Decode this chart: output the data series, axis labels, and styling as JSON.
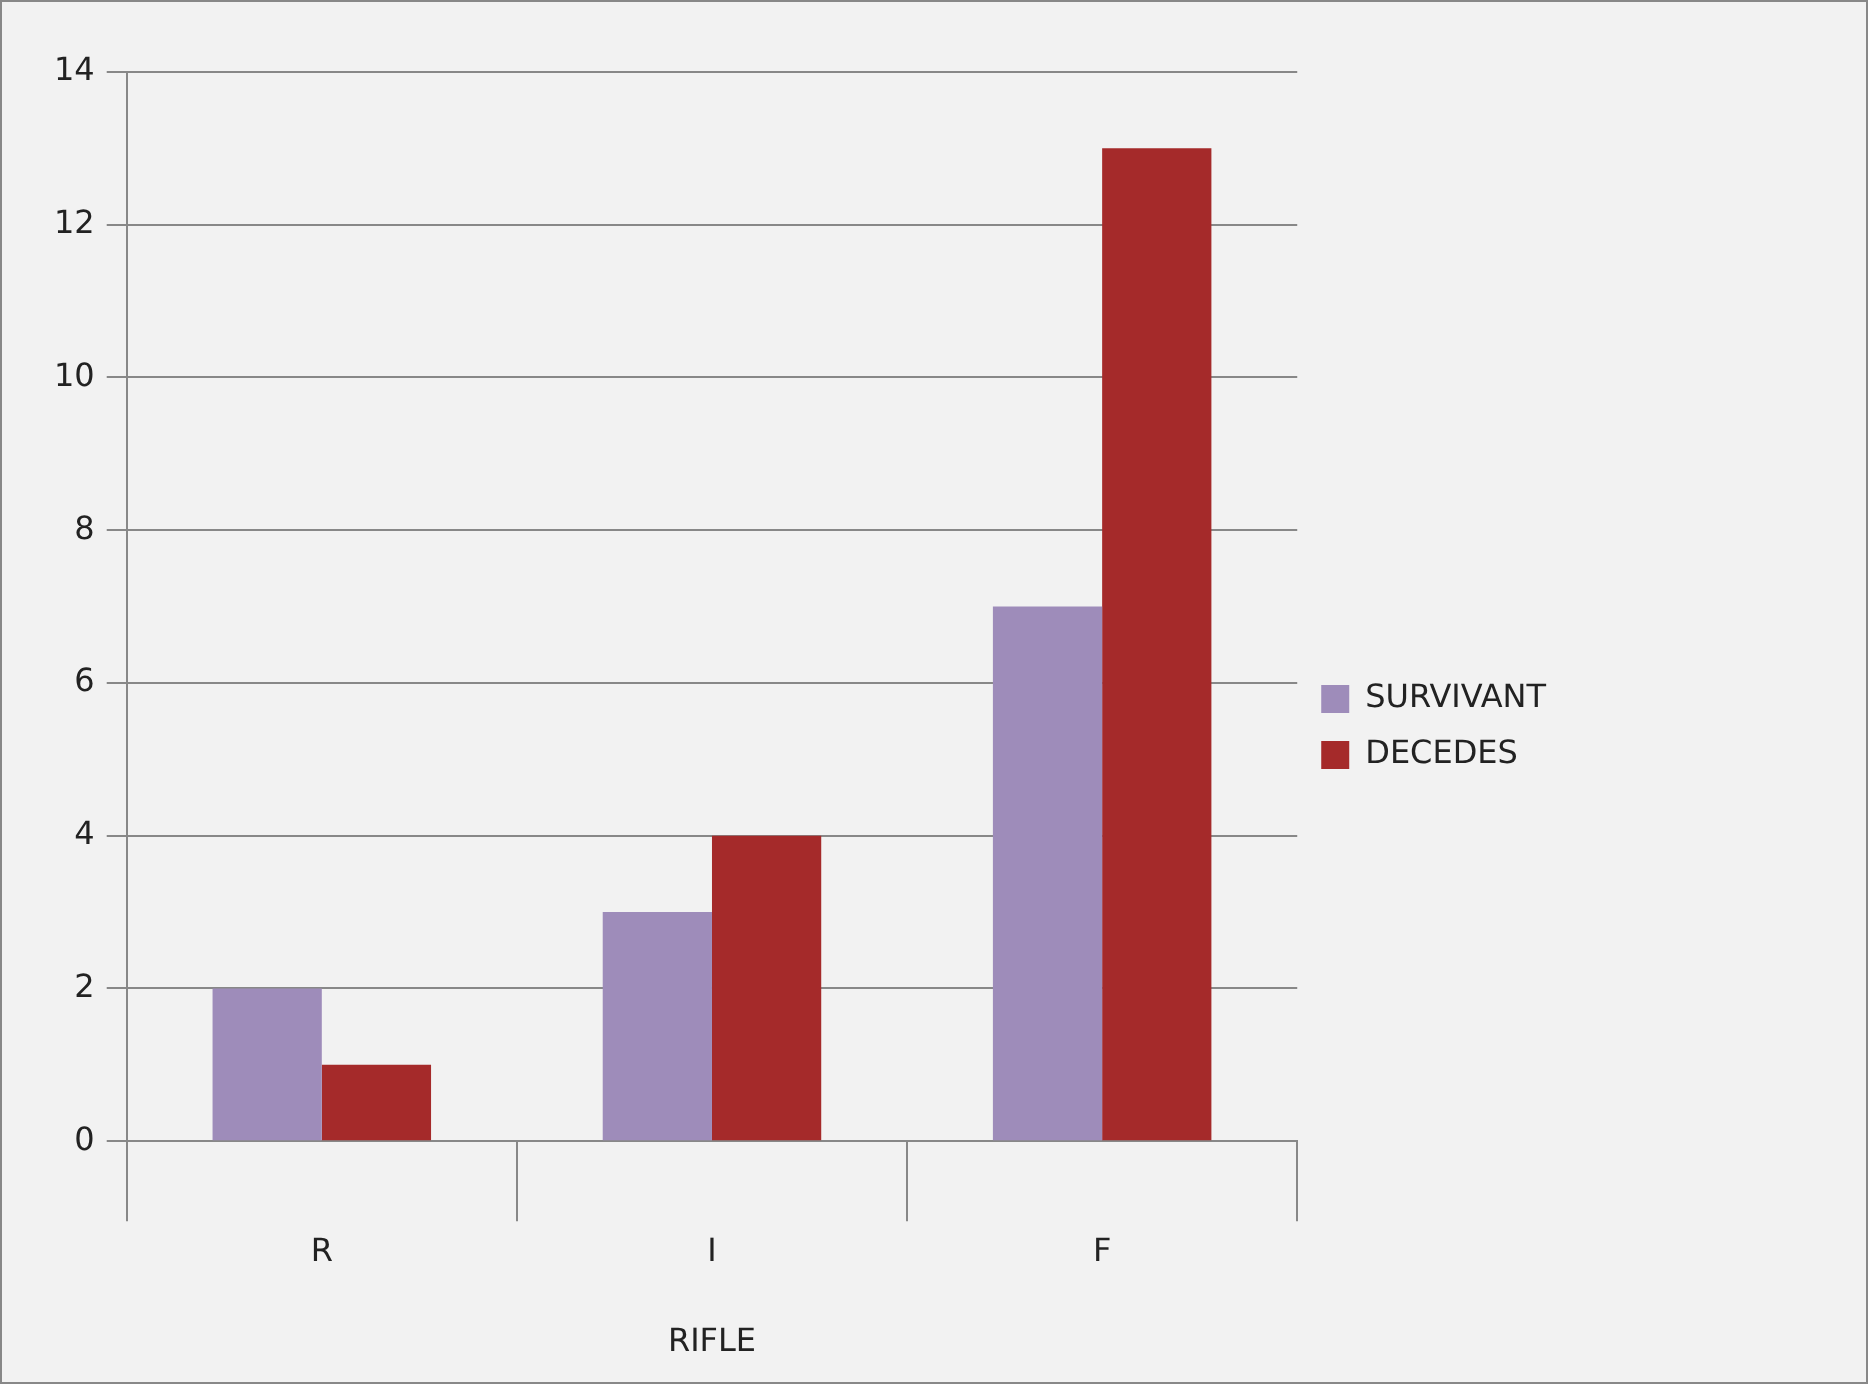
{
  "chart_data": {
    "type": "bar",
    "xlabel": "RIFLE",
    "categories": [
      "R",
      "I",
      "F"
    ],
    "series": [
      {
        "name": "SURVIVANT",
        "color": "#9e8cba",
        "values": [
          2,
          3,
          7
        ]
      },
      {
        "name": "DECEDES",
        "color": "#a52a2a",
        "values": [
          1,
          4,
          13
        ]
      }
    ],
    "ylim": [
      0,
      14
    ],
    "yticks": [
      0,
      2,
      4,
      6,
      8,
      10,
      12,
      14
    ],
    "grid": "y",
    "legend": "right"
  }
}
